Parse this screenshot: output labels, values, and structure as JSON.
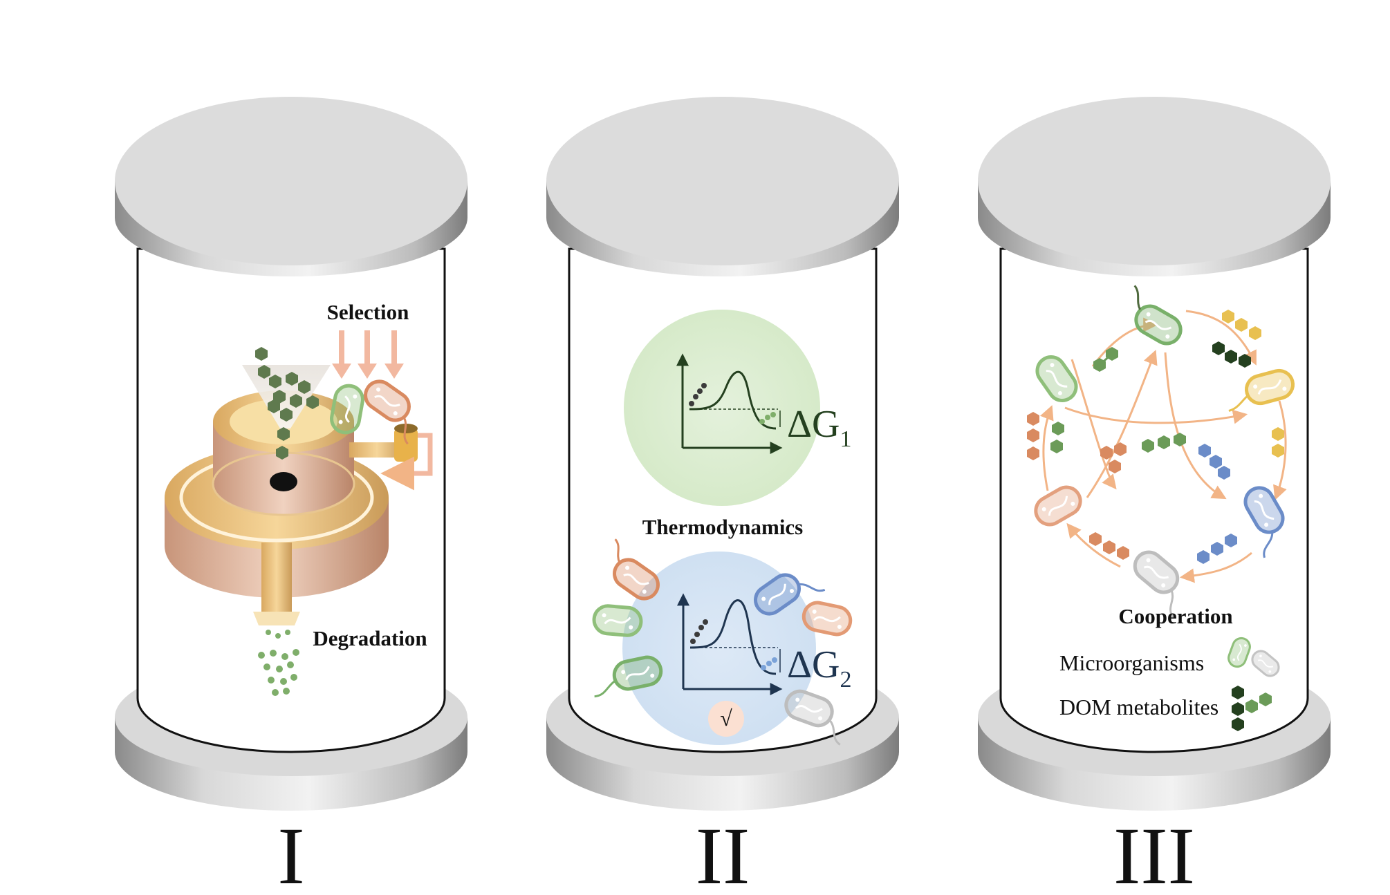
{
  "panels": [
    {
      "numeral": "I",
      "labels": {
        "selection": "Selection",
        "degradation": "Degradation"
      }
    },
    {
      "numeral": "II",
      "labels": {
        "thermodynamics": "Thermodynamics",
        "delta_g1": "ΔG",
        "delta_g1_sub": "1",
        "delta_g2": "ΔG",
        "delta_g2_sub": "2",
        "check": "√"
      }
    },
    {
      "numeral": "III",
      "labels": {
        "cooperation": "Cooperation",
        "legend_microorganisms": "Microorganisms",
        "legend_dom": "DOM metabolites"
      }
    }
  ],
  "colors": {
    "cap_top": "#dcdcdc",
    "cap_side": "#b4b4b4",
    "selection_arrow": "#f2b8a0",
    "green_mol": "#5a7a4a",
    "light_green_circle": "#d9ecd0",
    "light_blue_circle": "#d4e3f4",
    "peach_arrow": "#f2b486",
    "microbe_green": "#8fbf7a",
    "microbe_orange": "#d98a60",
    "microbe_blue": "#6b8cc8",
    "microbe_yellow": "#e8c050",
    "microbe_gray": "#bdbdbd",
    "machine_gold": "#f0c878"
  },
  "icons": [
    "cylinder",
    "machine-funnel",
    "energy-curve",
    "microbe",
    "molecule-chain",
    "cycle-arrows"
  ]
}
